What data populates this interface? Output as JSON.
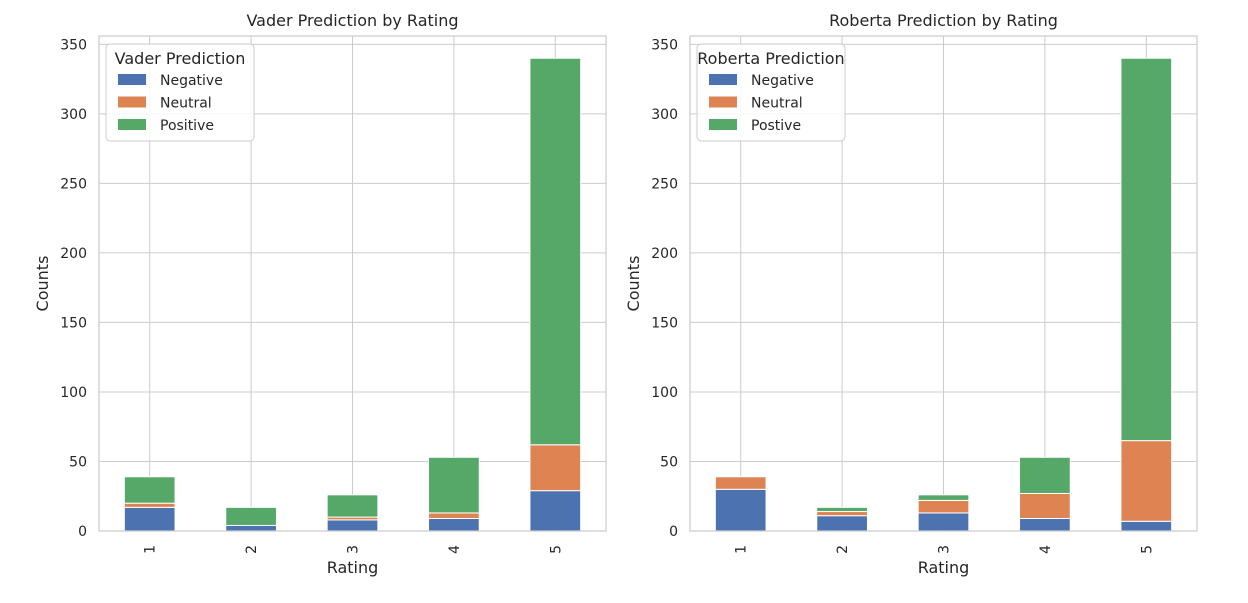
{
  "colors": {
    "negative": "#4c72b0",
    "neutral": "#dd8452",
    "positive": "#55a868"
  },
  "chart_data": [
    {
      "type": "bar",
      "stacked": true,
      "title": "Vader Prediction by Rating",
      "xlabel": "Rating",
      "ylabel": "Counts",
      "categories": [
        "1",
        "2",
        "3",
        "4",
        "5"
      ],
      "ylim": [
        0,
        356
      ],
      "yticks": [
        0,
        50,
        100,
        150,
        200,
        250,
        300,
        350
      ],
      "grid": true,
      "legend": {
        "title": "Vader Prediction",
        "placement": "top-left"
      },
      "series": [
        {
          "name": "Negative",
          "values": [
            17,
            4,
            8,
            9,
            29
          ]
        },
        {
          "name": "Neutral",
          "values": [
            3,
            0,
            2,
            4,
            33
          ]
        },
        {
          "name": "Positive",
          "values": [
            19,
            13,
            16,
            40,
            278
          ]
        }
      ]
    },
    {
      "type": "bar",
      "stacked": true,
      "title": "Roberta Prediction by Rating",
      "xlabel": "Rating",
      "ylabel": "Counts",
      "categories": [
        "1",
        "2",
        "3",
        "4",
        "5"
      ],
      "ylim": [
        0,
        356
      ],
      "yticks": [
        0,
        50,
        100,
        150,
        200,
        250,
        300,
        350
      ],
      "grid": true,
      "legend": {
        "title": "Roberta Prediction",
        "placement": "top-left"
      },
      "series": [
        {
          "name": "Negative",
          "values": [
            30,
            11,
            13,
            9,
            7
          ]
        },
        {
          "name": "Neutral",
          "values": [
            9,
            3,
            9,
            18,
            58
          ]
        },
        {
          "name": "Postive",
          "values": [
            0,
            3,
            4,
            26,
            275
          ]
        }
      ]
    }
  ]
}
